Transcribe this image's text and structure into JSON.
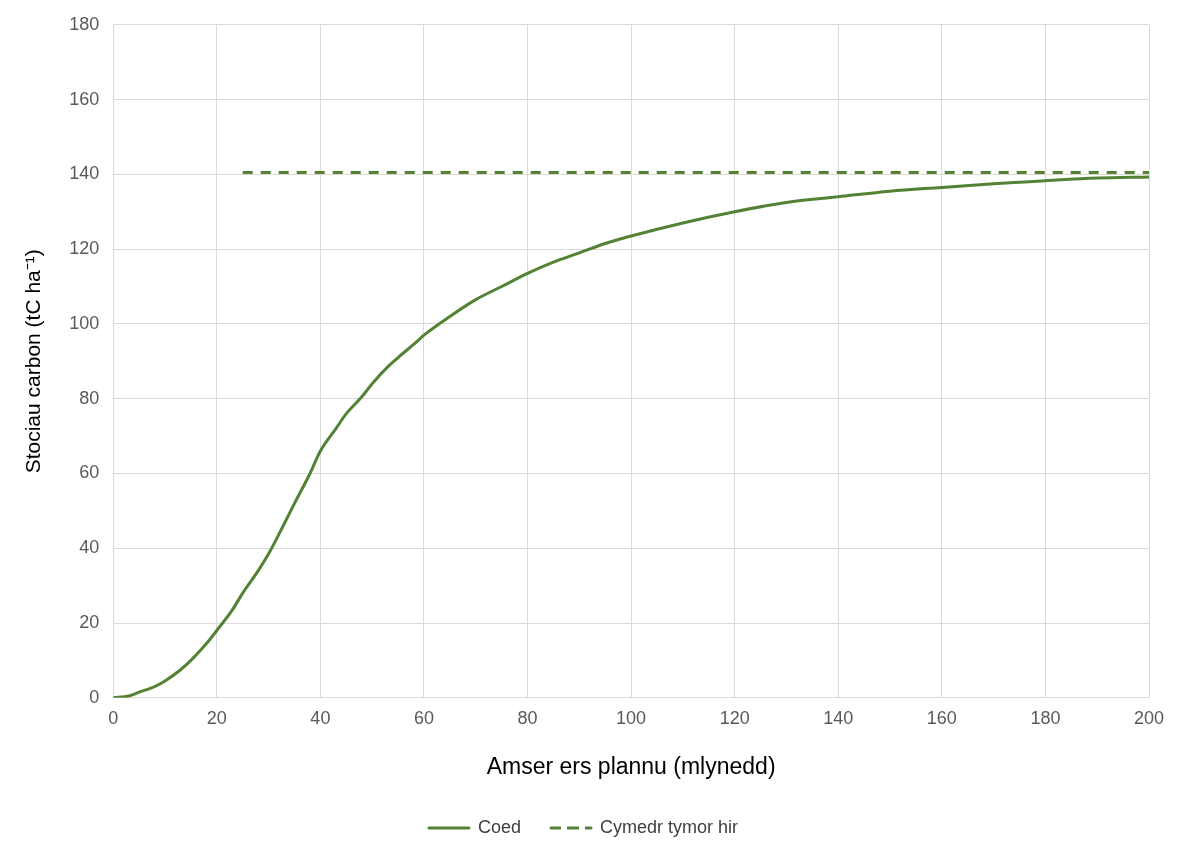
{
  "chart_data": {
    "type": "line",
    "xlabel": "Amser ers plannu (mlynedd)",
    "ylabel": "Stociau carbon (tC ha⁻¹)",
    "xlim": [
      0,
      200
    ],
    "xticks": [
      0,
      20,
      40,
      60,
      80,
      100,
      120,
      140,
      160,
      180,
      200
    ],
    "ylim": [
      0,
      180
    ],
    "yticks": [
      0,
      20,
      40,
      60,
      80,
      100,
      120,
      140,
      160,
      180
    ],
    "grid": true,
    "legend": "bottom",
    "marker": "none",
    "series": [
      {
        "name": "Coed",
        "color": "#548235",
        "line_style": "solid",
        "x": [
          0,
          3,
          5,
          8,
          10,
          13,
          15,
          18,
          20,
          23,
          25,
          28,
          30,
          33,
          35,
          38,
          40,
          43,
          45,
          48,
          50,
          53,
          55,
          58,
          60,
          65,
          70,
          75,
          80,
          85,
          90,
          95,
          100,
          110,
          120,
          130,
          140,
          150,
          160,
          170,
          180,
          190,
          200
        ],
        "values": [
          0,
          0.5,
          1.5,
          3,
          4.5,
          7.5,
          10,
          14.5,
          18,
          23.5,
          28,
          34,
          38.5,
          46.5,
          52,
          60,
          66,
          72,
          76,
          80.5,
          84,
          88.5,
          91,
          94.5,
          97,
          102,
          106.5,
          110,
          113.5,
          116.5,
          119,
          121.5,
          123.5,
          127,
          130,
          132.5,
          134,
          135.5,
          136.5,
          137.5,
          138.3,
          139,
          139.3
        ]
      },
      {
        "name": "Cymedr tymor hir",
        "color": "#548235",
        "line_style": "dashed",
        "x": [
          25,
          200
        ],
        "values": [
          140.5,
          140.5
        ]
      }
    ]
  }
}
